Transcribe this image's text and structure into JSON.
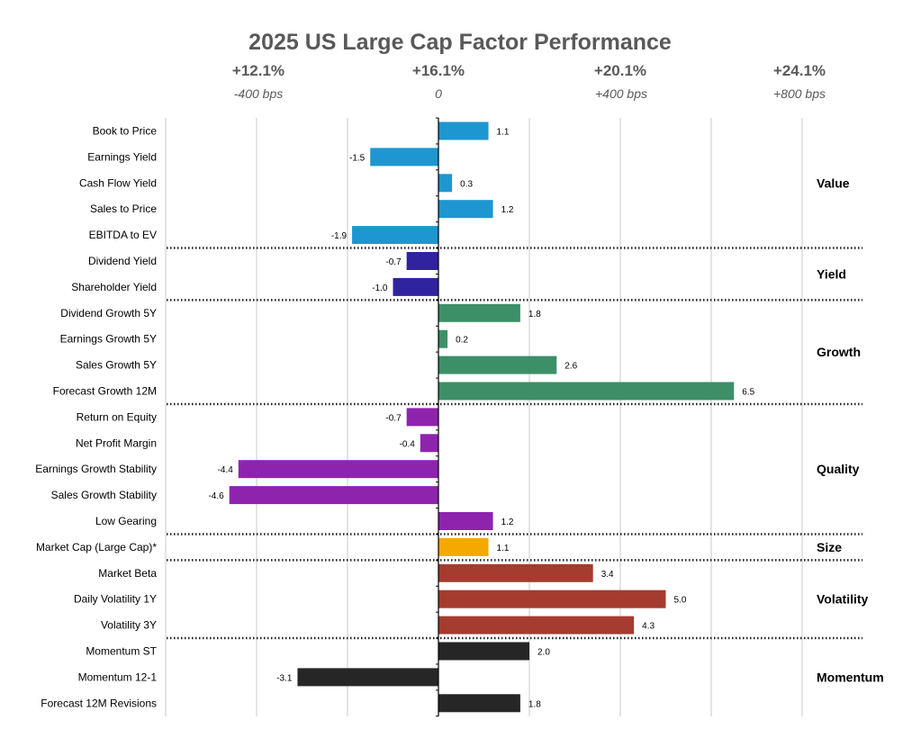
{
  "chart_data": {
    "type": "bar",
    "orientation": "horizontal",
    "title": "2025 US Large Cap Factor Performance",
    "top_axis_labels": [
      "+12.1%",
      "+16.1%",
      "+20.1%",
      "+24.1%"
    ],
    "bps_axis_labels": [
      "-400 bps",
      "0",
      "+400 bps",
      "+800 bps"
    ],
    "xlim": [
      -6,
      8
    ],
    "gridlines_at": [
      -6,
      -4,
      -2,
      0,
      2,
      4,
      6,
      8
    ],
    "major_tick_values": [
      -4,
      0,
      4,
      8
    ],
    "categories": [
      "Book to Price",
      "Earnings Yield",
      "Cash Flow Yield",
      "Sales to Price",
      "EBITDA to EV",
      "Dividend Yield",
      "Shareholder Yield",
      "Dividend Growth 5Y",
      "Earnings Growth 5Y",
      "Sales Growth 5Y",
      "Forecast Growth 12M",
      "Return on Equity",
      "Net Profit Margin",
      "Earnings Growth Stability",
      "Sales Growth Stability",
      "Low Gearing",
      "Market Cap (Large Cap)*",
      "Market Beta",
      "Daily Volatility 1Y",
      "Volatility 3Y",
      "Momentum ST",
      "Momentum 12-1",
      "Forecast 12M Revisions"
    ],
    "values": [
      1.1,
      -1.5,
      0.3,
      1.2,
      -1.9,
      -0.7,
      -1.0,
      1.8,
      0.2,
      2.6,
      6.5,
      -0.7,
      -0.4,
      -4.4,
      -4.6,
      1.2,
      1.1,
      3.4,
      5.0,
      4.3,
      2.0,
      -3.1,
      1.8
    ],
    "value_labels": [
      "1.1",
      "-1.5",
      "0.3",
      "1.2",
      "-1.9",
      "-0.7",
      "-1.0",
      "1.8",
      "0.2",
      "2.6",
      "6.5",
      "-0.7",
      "-0.4",
      "-4.4",
      "-4.6",
      "1.2",
      "1.1",
      "3.4",
      "5.0",
      "4.3",
      "2.0",
      "-3.1",
      "1.8"
    ],
    "groups": [
      {
        "name": "Value",
        "start": 0,
        "count": 5,
        "color": "#1E96D0"
      },
      {
        "name": "Yield",
        "start": 5,
        "count": 2,
        "color": "#3023A0"
      },
      {
        "name": "Growth",
        "start": 7,
        "count": 4,
        "color": "#3D8F68"
      },
      {
        "name": "Quality",
        "start": 11,
        "count": 5,
        "color": "#8E24AE"
      },
      {
        "name": "Size",
        "start": 16,
        "count": 1,
        "color": "#F5A800"
      },
      {
        "name": "Volatility",
        "start": 17,
        "count": 3,
        "color": "#A63B30"
      },
      {
        "name": "Momentum",
        "start": 20,
        "count": 3,
        "color": "#262626"
      }
    ]
  }
}
